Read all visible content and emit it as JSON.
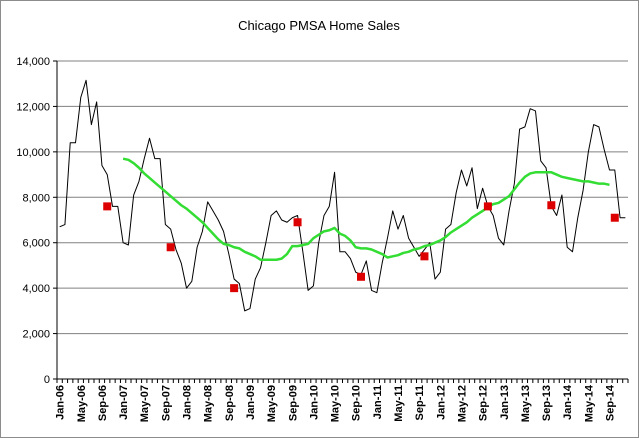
{
  "chart_data": {
    "type": "line",
    "title": "Chicago PMSA Home Sales",
    "xlabel": "",
    "ylabel": "",
    "ylim": [
      0,
      14000
    ],
    "yticks": [
      "0",
      "2,000",
      "4,000",
      "6,000",
      "8,000",
      "10,000",
      "12,000",
      "14,000"
    ],
    "xtick_labels": [
      "Jan-06",
      "May-06",
      "Sep-06",
      "Jan-07",
      "May-07",
      "Sep-07",
      "Jan-08",
      "May-08",
      "Sep-08",
      "Jan-09",
      "May-09",
      "Sep-09",
      "Jan-10",
      "May-10",
      "Sep-10",
      "Jan-11",
      "May-11",
      "Sep-11",
      "Jan-12",
      "May-12",
      "Sep-12",
      "Jan-13",
      "May-13",
      "Sep-13",
      "Jan-14",
      "May-14",
      "Sep-14"
    ],
    "grid": true,
    "legend": "none",
    "colors": {
      "monthly": "#000000",
      "moving_average": "#33dd33",
      "markers": "#dd0000",
      "grid": "#808080"
    },
    "x": [
      "Jan-06",
      "Feb-06",
      "Mar-06",
      "Apr-06",
      "May-06",
      "Jun-06",
      "Jul-06",
      "Aug-06",
      "Sep-06",
      "Oct-06",
      "Nov-06",
      "Dec-06",
      "Jan-07",
      "Feb-07",
      "Mar-07",
      "Apr-07",
      "May-07",
      "Jun-07",
      "Jul-07",
      "Aug-07",
      "Sep-07",
      "Oct-07",
      "Nov-07",
      "Dec-07",
      "Jan-08",
      "Feb-08",
      "Mar-08",
      "Apr-08",
      "May-08",
      "Jun-08",
      "Jul-08",
      "Aug-08",
      "Sep-08",
      "Oct-08",
      "Nov-08",
      "Dec-08",
      "Jan-09",
      "Feb-09",
      "Mar-09",
      "Apr-09",
      "May-09",
      "Jun-09",
      "Jul-09",
      "Aug-09",
      "Sep-09",
      "Oct-09",
      "Nov-09",
      "Dec-09",
      "Jan-10",
      "Feb-10",
      "Mar-10",
      "Apr-10",
      "May-10",
      "Jun-10",
      "Jul-10",
      "Aug-10",
      "Sep-10",
      "Oct-10",
      "Nov-10",
      "Dec-10",
      "Jan-11",
      "Feb-11",
      "Mar-11",
      "Apr-11",
      "May-11",
      "Jun-11",
      "Jul-11",
      "Aug-11",
      "Sep-11",
      "Oct-11",
      "Nov-11",
      "Dec-11",
      "Jan-12",
      "Feb-12",
      "Mar-12",
      "Apr-12",
      "May-12",
      "Jun-12",
      "Jul-12",
      "Aug-12",
      "Sep-12",
      "Oct-12",
      "Nov-12",
      "Dec-12",
      "Jan-13",
      "Feb-13",
      "Mar-13",
      "Apr-13",
      "May-13",
      "Jun-13",
      "Jul-13",
      "Aug-13",
      "Sep-13",
      "Oct-13",
      "Nov-13",
      "Dec-13",
      "Jan-14",
      "Feb-14",
      "Mar-14",
      "Apr-14",
      "May-14",
      "Jun-14",
      "Jul-14",
      "Aug-14",
      "Sep-14",
      "Oct-14",
      "Nov-14",
      "Dec-14"
    ],
    "series": [
      {
        "values": [
          6700,
          6800,
          10400,
          10400,
          12400,
          13150,
          11200,
          12200,
          9400,
          9000,
          7600,
          7600,
          6000,
          5900,
          8100,
          8700,
          9700,
          10600,
          9700,
          9700,
          6800,
          6600,
          5700,
          5100,
          4000,
          4300,
          5800,
          6500,
          7800,
          7400,
          7000,
          6500,
          5500,
          4400,
          4200,
          3000,
          3100,
          4400,
          4900,
          6000,
          7200,
          7400,
          7000,
          6900,
          7100,
          7200,
          5600,
          3900,
          4100,
          6000,
          7200,
          7600,
          9100,
          5600,
          5600,
          5300,
          4700,
          4600,
          5200,
          3900,
          3800,
          5100,
          6200,
          7400,
          6600,
          7200,
          6200,
          5800,
          5400,
          5700,
          6000,
          4400,
          4700,
          6600,
          6800,
          8200,
          9200,
          8500,
          9300,
          7500,
          8400,
          7600,
          7200,
          6200,
          5900,
          7400,
          8600,
          11000,
          11100,
          11900,
          11800,
          9600,
          9300,
          7600,
          7200,
          8100,
          5800,
          5600,
          7100,
          8300,
          10000,
          11200,
          11100,
          10100,
          9200,
          9200,
          7100,
          7100
        ]
      },
      {
        "values": [
          null,
          null,
          null,
          null,
          null,
          null,
          null,
          null,
          null,
          null,
          null,
          null,
          9700,
          9650,
          9500,
          9300,
          9050,
          8850,
          8650,
          8450,
          8250,
          8050,
          7850,
          7650,
          7500,
          7300,
          7100,
          6900,
          6650,
          6400,
          6150,
          5950,
          5900,
          5800,
          5750,
          5600,
          5500,
          5400,
          5250,
          5250,
          5250,
          5250,
          5300,
          5500,
          5850,
          5850,
          5900,
          5950,
          6200,
          6350,
          6500,
          6550,
          6650,
          6400,
          6300,
          6100,
          5800,
          5750,
          5750,
          5700,
          5600,
          5500,
          5350,
          5400,
          5450,
          5550,
          5600,
          5700,
          5750,
          5850,
          5900,
          6000,
          6100,
          6250,
          6450,
          6600,
          6750,
          6900,
          7100,
          7250,
          7400,
          7550,
          7700,
          7750,
          7900,
          8050,
          8350,
          8650,
          8900,
          9050,
          9100,
          9100,
          9100,
          9100,
          9000,
          8900,
          8850,
          8800,
          8750,
          8700,
          8700,
          8650,
          8600,
          8600,
          8550,
          null,
          null,
          null
        ]
      }
    ],
    "markers": {
      "x": [
        "Oct-06",
        "Oct-07",
        "Oct-08",
        "Oct-09",
        "Oct-10",
        "Oct-11",
        "Oct-12",
        "Oct-13",
        "Oct-14"
      ],
      "values": [
        7600,
        5800,
        4000,
        6900,
        4500,
        5400,
        7600,
        7650,
        7100
      ]
    }
  }
}
